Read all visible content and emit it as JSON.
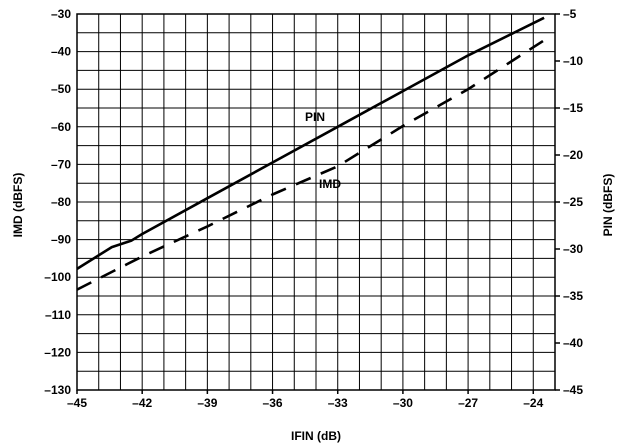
{
  "chart_data": {
    "type": "line",
    "xlabel": "IFIN (dB)",
    "ylabel_left": "IMD (dBFS)",
    "ylabel_right": "PIN (dBFS)",
    "xlim": [
      -45,
      -23
    ],
    "ylim_left": [
      -130,
      -30
    ],
    "ylim_right": [
      -45,
      -5
    ],
    "x_ticks": [
      -45,
      -42,
      -39,
      -36,
      -33,
      -30,
      -27,
      -24
    ],
    "x_tick_labels": [
      "–45",
      "–42",
      "–39",
      "–36",
      "–33",
      "–30",
      "–27",
      "–24"
    ],
    "y_left_ticks": [
      -30,
      -40,
      -50,
      -60,
      -70,
      -80,
      -90,
      -100,
      -110,
      -120,
      -130
    ],
    "y_left_tick_labels": [
      "–30",
      "–40",
      "–50",
      "–60",
      "–70",
      "–80",
      "–90",
      "–100",
      "–110",
      "–120",
      "–130"
    ],
    "y_right_ticks": [
      -5,
      -10,
      -15,
      -20,
      -25,
      -30,
      -35,
      -40,
      -45
    ],
    "y_right_tick_labels": [
      "–5",
      "–10",
      "–15",
      "–20",
      "–25",
      "–30",
      "–35",
      "–40",
      "–45"
    ],
    "grid": true,
    "series": [
      {
        "name": "PIN",
        "axis": "left",
        "style": "solid",
        "x": [
          -45,
          -43.4,
          -42.5,
          -42,
          -39,
          -36,
          -33,
          -30,
          -27,
          -23.5
        ],
        "y": [
          -97.8,
          -92,
          -90.3,
          -88.5,
          -79,
          -69.5,
          -60,
          -50.5,
          -41,
          -31
        ]
      },
      {
        "name": "IMD",
        "axis": "left",
        "style": "dashed",
        "x": [
          -45,
          -42,
          -39,
          -36,
          -33,
          -30,
          -27,
          -23.5
        ],
        "y": [
          -103.3,
          -94.5,
          -86.5,
          -78,
          -70.5,
          -59.8,
          -50,
          -37
        ]
      }
    ],
    "color": "#000000"
  }
}
